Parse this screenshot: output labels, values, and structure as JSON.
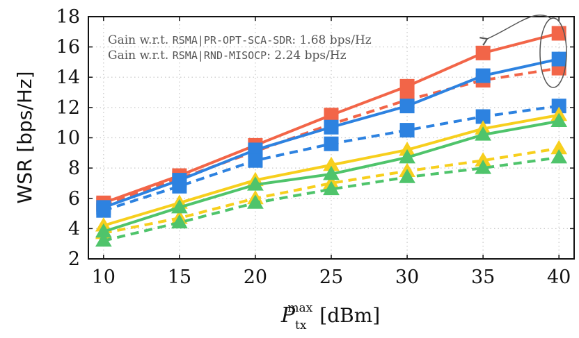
{
  "chart_data": {
    "type": "line",
    "xlabel_main": "P",
    "xlabel_sub": "tx",
    "xlabel_sup": "max",
    "xlabel_unit": "[dBm]",
    "ylabel": "WSR [bps/Hz]",
    "xlim": [
      9,
      41
    ],
    "ylim": [
      2,
      18
    ],
    "x": [
      10,
      15,
      20,
      25,
      30,
      35,
      40
    ],
    "x_ticks": [
      "10",
      "15",
      "20",
      "25",
      "30",
      "35",
      "40"
    ],
    "y_ticks": [
      "2",
      "4",
      "6",
      "8",
      "10",
      "12",
      "14",
      "16",
      "18"
    ],
    "grid": "dotted",
    "series": [
      {
        "color": "#f26548",
        "marker": "square",
        "dash": false,
        "values": [
          5.7,
          7.5,
          9.5,
          11.5,
          13.4,
          15.6,
          16.9
        ]
      },
      {
        "color": "#f26548",
        "marker": "square",
        "dash": true,
        "values": [
          5.6,
          7.3,
          9.1,
          10.9,
          12.5,
          13.8,
          14.6
        ]
      },
      {
        "color": "#2d82e0",
        "marker": "square",
        "dash": false,
        "values": [
          5.4,
          7.2,
          9.2,
          10.7,
          12.1,
          14.1,
          15.2
        ]
      },
      {
        "color": "#2d82e0",
        "marker": "square",
        "dash": true,
        "values": [
          5.2,
          6.8,
          8.5,
          9.6,
          10.5,
          11.4,
          12.1
        ]
      },
      {
        "color": "#f7cf1d",
        "marker": "triangle",
        "dash": false,
        "values": [
          4.2,
          5.7,
          7.2,
          8.2,
          9.2,
          10.6,
          11.5
        ]
      },
      {
        "color": "#f7cf1d",
        "marker": "triangle",
        "dash": true,
        "values": [
          3.7,
          4.7,
          6.0,
          7.0,
          7.8,
          8.5,
          9.3
        ]
      },
      {
        "color": "#4fc46b",
        "marker": "triangle",
        "dash": false,
        "values": [
          3.8,
          5.4,
          6.9,
          7.6,
          8.7,
          10.2,
          11.1
        ]
      },
      {
        "color": "#4fc46b",
        "marker": "triangle",
        "dash": true,
        "values": [
          3.2,
          4.4,
          5.7,
          6.6,
          7.4,
          8.0,
          8.7
        ]
      }
    ],
    "annotations": [
      {
        "prefix": "Gain w.r.t. ",
        "mono": "RSMA|PR-OPT-SCA-SDR",
        "suffix": ": 1.68 bps/Hz"
      },
      {
        "prefix": "Gain w.r.t. ",
        "mono": "RSMA|RND-MISOCP",
        "suffix": ": 2.24 bps/Hz"
      }
    ]
  }
}
